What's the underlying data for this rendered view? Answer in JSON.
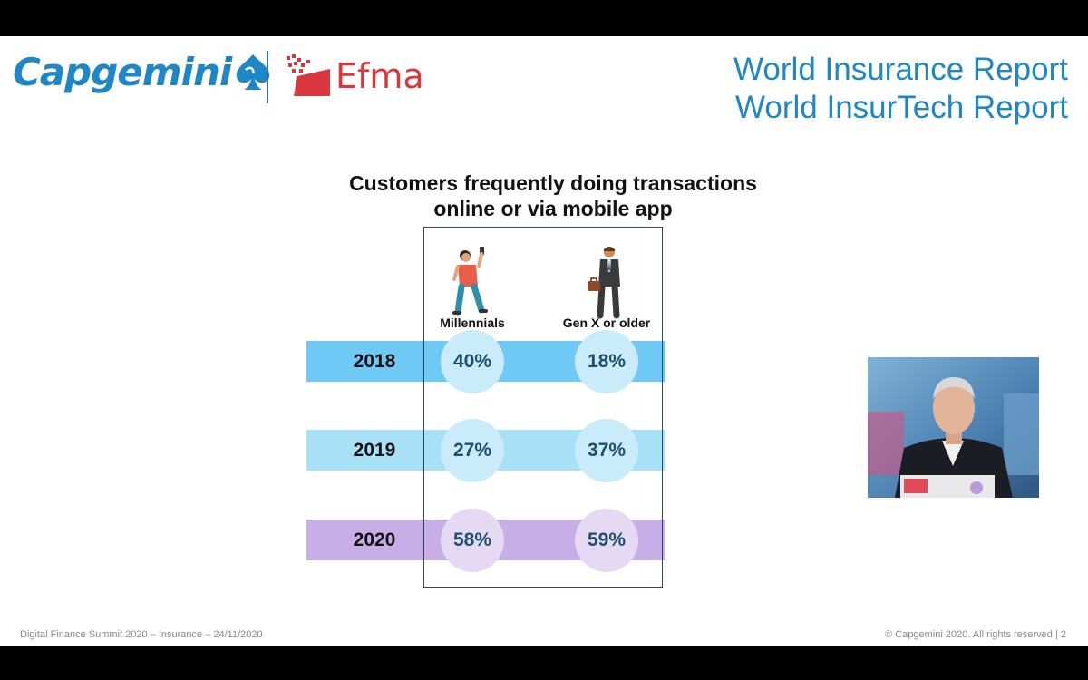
{
  "header": {
    "capgemini_logo_text": "Capgemini",
    "efma_logo_text": "Efma",
    "report_title_1": "World Insurance Report",
    "report_title_2": "World InsurTech Report"
  },
  "chart_data": {
    "type": "table",
    "title_line_1": "Customers frequently doing transactions",
    "title_line_2": "online or via mobile app",
    "columns": [
      "Millennials",
      "Gen X or older"
    ],
    "rows": [
      {
        "year": "2018",
        "values": [
          "40%",
          "18%"
        ],
        "color": "#6ec9f5",
        "circle_color": "#c9ebfa"
      },
      {
        "year": "2019",
        "values": [
          "27%",
          "37%"
        ],
        "color": "#a8e1f5",
        "circle_color": "#c9ebfa"
      },
      {
        "year": "2020",
        "values": [
          "58%",
          "59%"
        ],
        "color": "#c7aee6",
        "circle_color": "#e6d9f3"
      }
    ]
  },
  "footer": {
    "left": "Digital Finance Summit 2020 – Insurance – 24/11/2020",
    "right": "© Capgemini 2020. All rights reserved   |   2"
  },
  "colors": {
    "brand_blue": "#1f87c5",
    "efma_red": "#d9363e"
  },
  "icons": {
    "capgemini_mark": "spade-icon",
    "millennial": "person-with-phone-icon",
    "genx": "businessman-with-briefcase-icon"
  }
}
